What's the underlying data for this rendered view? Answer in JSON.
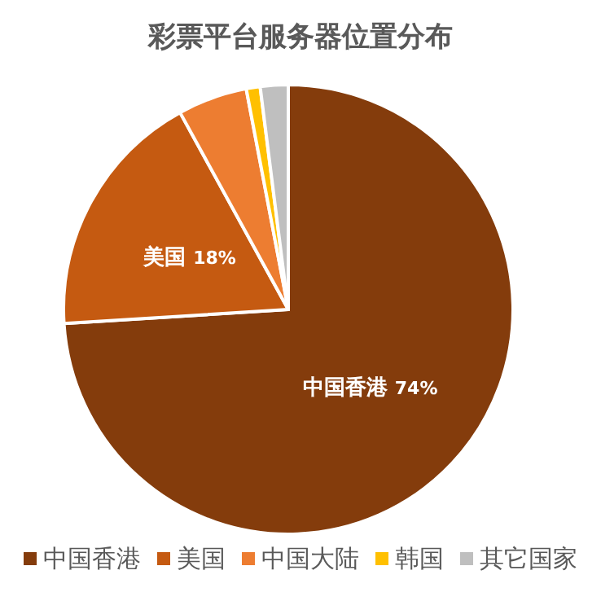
{
  "chart_data": {
    "type": "pie",
    "title": "彩票平台服务器位置分布",
    "categories": [
      "中国香港",
      "美国",
      "中国大陆",
      "韩国",
      "其它国家"
    ],
    "values": [
      74,
      18,
      5,
      1,
      2
    ],
    "colors": [
      "#843c0c",
      "#c55a11",
      "#ed7d31",
      "#ffc000",
      "#bfbfbf"
    ],
    "value_labels": [
      "74%",
      "18%",
      null,
      null,
      null
    ],
    "legend": "bottom"
  }
}
